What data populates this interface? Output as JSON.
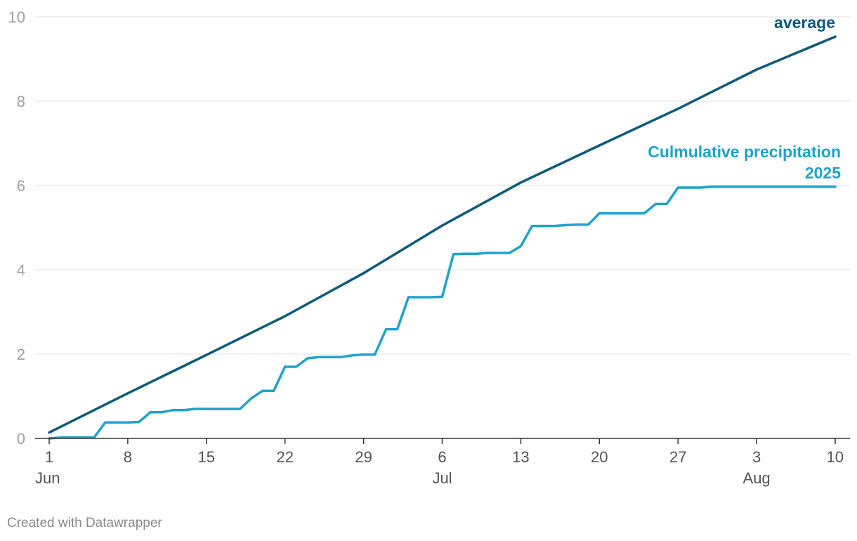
{
  "chart_data": {
    "type": "line",
    "title": "",
    "xlabel": "",
    "ylabel": "",
    "x_range": [
      "2025-06-01",
      "2025-08-10"
    ],
    "ylim": [
      0,
      10
    ],
    "y_ticks": [
      0,
      2,
      4,
      6,
      8,
      10
    ],
    "grid": "horizontal",
    "x_ticks": [
      {
        "date": "2025-06-01",
        "label": "1",
        "month": "Jun"
      },
      {
        "date": "2025-06-08",
        "label": "8",
        "month": ""
      },
      {
        "date": "2025-06-15",
        "label": "15",
        "month": ""
      },
      {
        "date": "2025-06-22",
        "label": "22",
        "month": ""
      },
      {
        "date": "2025-06-29",
        "label": "29",
        "month": ""
      },
      {
        "date": "2025-07-06",
        "label": "6",
        "month": "Jul"
      },
      {
        "date": "2025-07-13",
        "label": "13",
        "month": ""
      },
      {
        "date": "2025-07-20",
        "label": "20",
        "month": ""
      },
      {
        "date": "2025-07-27",
        "label": "27",
        "month": ""
      },
      {
        "date": "2025-08-03",
        "label": "3",
        "month": "Aug"
      },
      {
        "date": "2025-08-10",
        "label": "10",
        "month": ""
      }
    ],
    "series": [
      {
        "name": "average",
        "label_lines": [
          "average"
        ],
        "color": "#0d5a7a",
        "points": [
          [
            "2025-06-01",
            0.14
          ],
          [
            "2025-06-08",
            1.07
          ],
          [
            "2025-06-15",
            1.98
          ],
          [
            "2025-06-22",
            2.9
          ],
          [
            "2025-06-29",
            3.92
          ],
          [
            "2025-07-06",
            5.05
          ],
          [
            "2025-07-13",
            6.07
          ],
          [
            "2025-07-20",
            6.95
          ],
          [
            "2025-07-27",
            7.82
          ],
          [
            "2025-08-03",
            8.75
          ],
          [
            "2025-08-10",
            9.53
          ]
        ]
      },
      {
        "name": "Culmulative precipitation 2025",
        "label_lines": [
          "Culmulative precipitation",
          "2025"
        ],
        "color": "#1ea3cc",
        "points": [
          [
            "2025-06-01",
            0.0
          ],
          [
            "2025-06-02",
            0.02
          ],
          [
            "2025-06-03",
            0.02
          ],
          [
            "2025-06-04",
            0.02
          ],
          [
            "2025-06-05",
            0.02
          ],
          [
            "2025-06-06",
            0.38
          ],
          [
            "2025-06-07",
            0.38
          ],
          [
            "2025-06-08",
            0.38
          ],
          [
            "2025-06-09",
            0.39
          ],
          [
            "2025-06-10",
            0.62
          ],
          [
            "2025-06-11",
            0.62
          ],
          [
            "2025-06-12",
            0.67
          ],
          [
            "2025-06-13",
            0.67
          ],
          [
            "2025-06-14",
            0.7
          ],
          [
            "2025-06-15",
            0.7
          ],
          [
            "2025-06-16",
            0.7
          ],
          [
            "2025-06-17",
            0.7
          ],
          [
            "2025-06-18",
            0.7
          ],
          [
            "2025-06-19",
            0.95
          ],
          [
            "2025-06-20",
            1.13
          ],
          [
            "2025-06-21",
            1.13
          ],
          [
            "2025-06-22",
            1.7
          ],
          [
            "2025-06-23",
            1.7
          ],
          [
            "2025-06-24",
            1.9
          ],
          [
            "2025-06-25",
            1.93
          ],
          [
            "2025-06-26",
            1.93
          ],
          [
            "2025-06-27",
            1.93
          ],
          [
            "2025-06-28",
            1.97
          ],
          [
            "2025-06-29",
            1.99
          ],
          [
            "2025-06-30",
            1.99
          ],
          [
            "2025-07-01",
            2.59
          ],
          [
            "2025-07-02",
            2.59
          ],
          [
            "2025-07-03",
            3.35
          ],
          [
            "2025-07-04",
            3.35
          ],
          [
            "2025-07-05",
            3.35
          ],
          [
            "2025-07-06",
            3.36
          ],
          [
            "2025-07-07",
            4.37
          ],
          [
            "2025-07-08",
            4.38
          ],
          [
            "2025-07-09",
            4.38
          ],
          [
            "2025-07-10",
            4.4
          ],
          [
            "2025-07-11",
            4.4
          ],
          [
            "2025-07-12",
            4.4
          ],
          [
            "2025-07-13",
            4.56
          ],
          [
            "2025-07-14",
            5.04
          ],
          [
            "2025-07-15",
            5.04
          ],
          [
            "2025-07-16",
            5.04
          ],
          [
            "2025-07-17",
            5.06
          ],
          [
            "2025-07-18",
            5.07
          ],
          [
            "2025-07-19",
            5.07
          ],
          [
            "2025-07-20",
            5.34
          ],
          [
            "2025-07-21",
            5.34
          ],
          [
            "2025-07-22",
            5.34
          ],
          [
            "2025-07-23",
            5.34
          ],
          [
            "2025-07-24",
            5.34
          ],
          [
            "2025-07-25",
            5.56
          ],
          [
            "2025-07-26",
            5.56
          ],
          [
            "2025-07-27",
            5.95
          ],
          [
            "2025-07-28",
            5.95
          ],
          [
            "2025-07-29",
            5.95
          ],
          [
            "2025-07-30",
            5.97
          ],
          [
            "2025-08-10",
            5.97
          ]
        ]
      }
    ]
  },
  "footer": {
    "credit": "Created with Datawrapper"
  }
}
